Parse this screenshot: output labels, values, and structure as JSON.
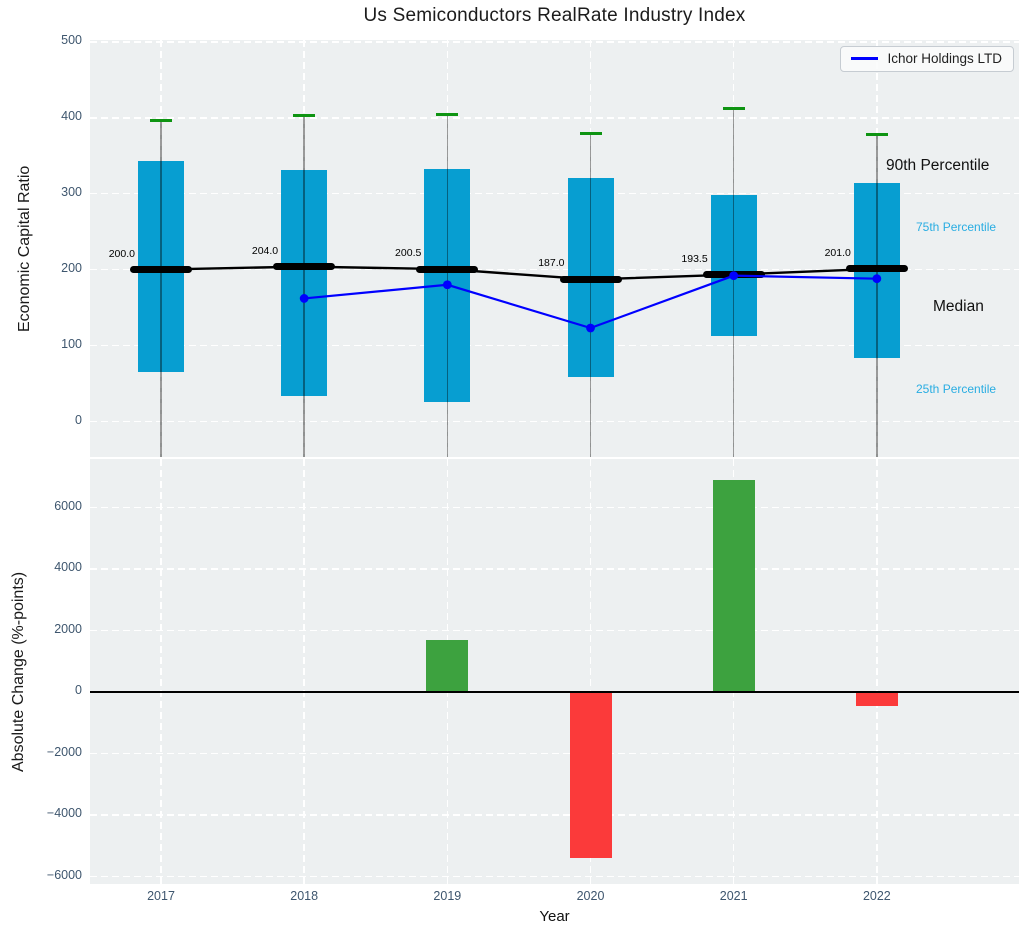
{
  "title": "Us Semiconductors RealRate Industry Index",
  "legend": {
    "label": "Ichor Holdings LTD"
  },
  "annotations": {
    "p90": "90th Percentile",
    "p75": "75th Percentile",
    "median": "Median",
    "p25": "25th Percentile"
  },
  "top_panel": {
    "ylabel": "Economic Capital Ratio"
  },
  "bottom_panel": {
    "ylabel": "Absolute Change (%-points)",
    "xlabel": "Year"
  },
  "colors": {
    "panel_bg": "#edf0f1",
    "box_blue": "#079ed1",
    "whisker_gray": "#9a9a9a",
    "cap_green": "#0e9412",
    "median_black": "#000000",
    "company_line_blue": "#0000ff",
    "bar_up_green": "#3da23f",
    "bar_down_red": "#fb3a3a",
    "percentile_label_cyan": "#29ade2",
    "tick_label": "#3e566e",
    "gridline": "#ffffff"
  },
  "chart_data": [
    {
      "type": "box",
      "title": "Us Semiconductors RealRate Industry Index",
      "ylabel": "Economic Capital Ratio",
      "ylim": [
        -47,
        502.6
      ],
      "yticks": [
        0,
        100,
        200,
        300,
        400,
        500
      ],
      "grid": true,
      "categories": [
        "2017",
        "2018",
        "2019",
        "2020",
        "2021",
        "2022"
      ],
      "boxes": [
        {
          "year": "2017",
          "q1": 65,
          "median": 200.0,
          "q3": 343,
          "p90": 397,
          "median_label": "200.0"
        },
        {
          "year": "2018",
          "q1": 33,
          "median": 204.0,
          "q3": 331,
          "p90": 403,
          "median_label": "204.0"
        },
        {
          "year": "2019",
          "q1": 25,
          "median": 200.5,
          "q3": 333,
          "p90": 405,
          "median_label": "200.5"
        },
        {
          "year": "2020",
          "q1": 58,
          "median": 187.0,
          "q3": 321,
          "p90": 380,
          "median_label": "187.0"
        },
        {
          "year": "2021",
          "q1": 112,
          "median": 193.5,
          "q3": 298,
          "p90": 412,
          "median_label": "193.5"
        },
        {
          "year": "2022",
          "q1": 83,
          "median": 201.0,
          "q3": 314,
          "p90": 378,
          "median_label": "201.0"
        }
      ],
      "whisker_note": "lower whiskers extend below the visible axis range (clipped at panel bottom)",
      "series": [
        {
          "name": "Ichor Holdings LTD",
          "type": "line",
          "x": [
            "2018",
            "2019",
            "2020",
            "2021",
            "2022"
          ],
          "values": [
            162,
            180,
            123,
            192,
            188
          ]
        }
      ],
      "legend_position": "upper right"
    },
    {
      "type": "bar",
      "ylabel": "Absolute Change (%-points)",
      "xlabel": "Year",
      "ylim": [
        -6244,
        7577
      ],
      "yticks": [
        -6000,
        -4000,
        -2000,
        0,
        2000,
        4000,
        6000
      ],
      "grid": true,
      "zero_line": true,
      "categories": [
        "2017",
        "2018",
        "2019",
        "2020",
        "2021",
        "2022"
      ],
      "values": [
        null,
        null,
        1700,
        -5400,
        6900,
        -450
      ],
      "bar_colors": [
        "none",
        "none",
        "green",
        "red",
        "green",
        "red"
      ]
    }
  ]
}
